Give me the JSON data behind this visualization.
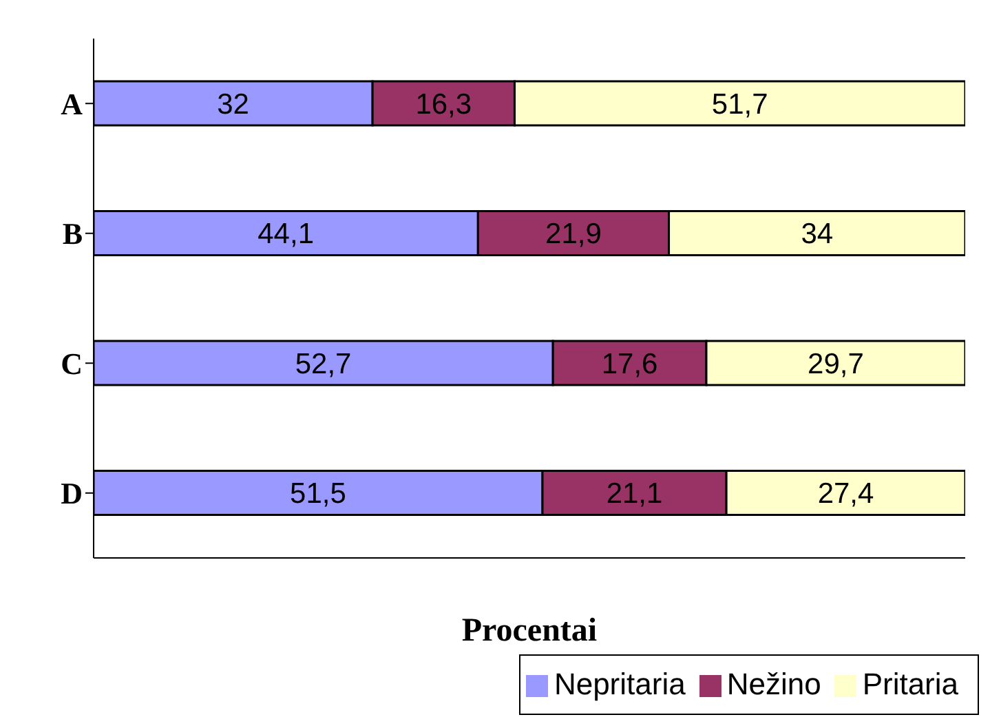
{
  "chart_data": {
    "type": "bar",
    "orientation": "horizontal",
    "stacked": true,
    "xlabel": "Procentai",
    "categories": [
      "A",
      "B",
      "C",
      "D"
    ],
    "series": [
      {
        "name": "Nepritaria",
        "color": "#9999ff",
        "values": [
          32,
          44.1,
          52.7,
          51.5
        ],
        "value_labels": [
          "32",
          "44,1",
          "52,7",
          "51,5"
        ]
      },
      {
        "name": "Nežino",
        "color": "#993366",
        "values": [
          16.3,
          21.9,
          17.6,
          21.1
        ],
        "value_labels": [
          "16,3",
          "21,9",
          "17,6",
          "21,1"
        ]
      },
      {
        "name": "Pritaria",
        "color": "#ffffcc",
        "values": [
          51.7,
          34,
          29.7,
          27.4
        ],
        "value_labels": [
          "51,7",
          "34",
          "29,7",
          "27,4"
        ]
      }
    ],
    "xlim": [
      0,
      100
    ],
    "tick_labels": "y",
    "legend": "bottom"
  }
}
